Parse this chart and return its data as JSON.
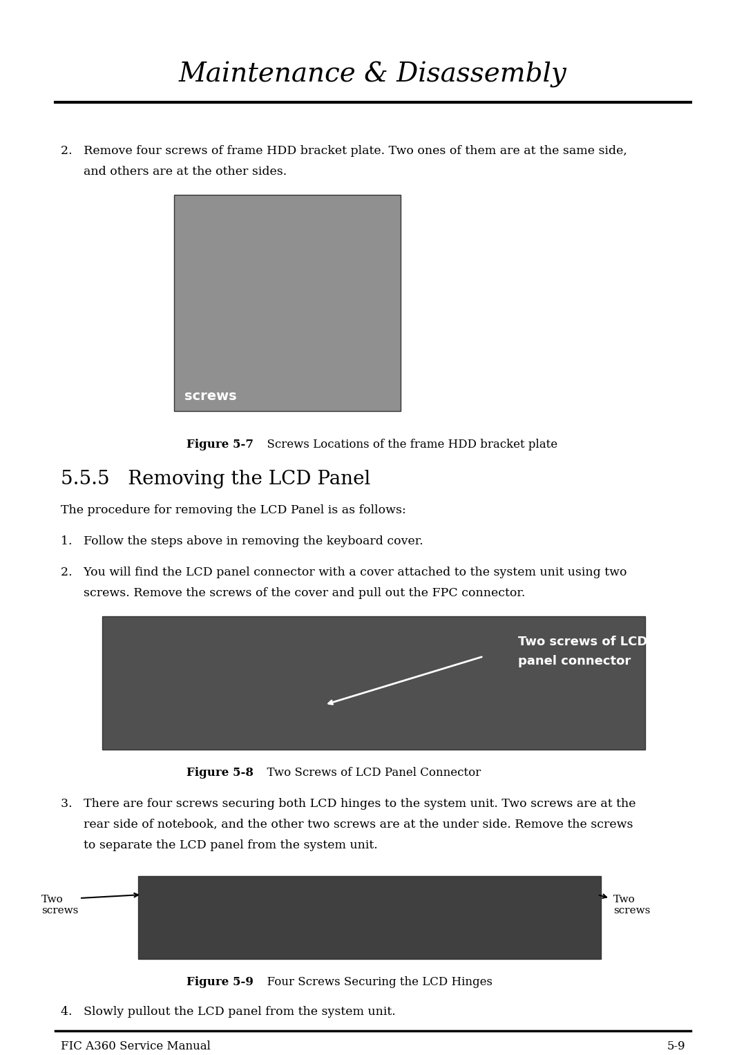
{
  "title": "Maintenance & Disassembly",
  "title_fontsize": 28,
  "bg_color": "#ffffff",
  "text_color": "#000000",
  "footer_left": "FIC A360 Service Manual",
  "footer_right": "5-9",
  "footer_fontsize": 12,
  "body_fontsize": 12.5,
  "caption_fontsize": 12,
  "section_fontsize": 20,
  "item2_top_line1": "2.   Remove four screws of frame HDD bracket plate. Two ones of them are at the same side,",
  "item2_top_line2": "      and others are at the other sides.",
  "fig7_label": "screws",
  "fig7_caption_bold": "Figure 5-7",
  "fig7_caption_normal": "      Screws Locations of the frame HDD bracket plate",
  "section_title": "5.5.5   Removing the LCD Panel",
  "intro_text": "The procedure for removing the LCD Panel is as follows:",
  "item1_text": "1.   Follow the steps above in removing the keyboard cover.",
  "item2b_line1": "2.   You will find the LCD panel connector with a cover attached to the system unit using two",
  "item2b_line2": "      screws. Remove the screws of the cover and pull out the FPC connector.",
  "fig8_label_line1": "Two screws of LCD",
  "fig8_label_line2": "panel connector",
  "fig8_caption_bold": "Figure 5-8",
  "fig8_caption_normal": "      Two Screws of LCD Panel Connector",
  "item3_line1": "3.   There are four screws securing both LCD hinges to the system unit. Two screws are at the",
  "item3_line2": "      rear side of notebook, and the other two screws are at the under side. Remove the screws",
  "item3_line3": "      to separate the LCD panel from the system unit.",
  "fig9_left_label": "Two\nscrews",
  "fig9_right_label": "Two\nscrews",
  "fig9_caption_bold": "Figure 5-9",
  "fig9_caption_normal": "      Four Screws Securing the LCD Hinges",
  "item4_text": "4.   Slowly pullout the LCD panel from the system unit.",
  "fig7_color": "#909090",
  "fig8_color": "#505050",
  "fig9_color": "#404040"
}
